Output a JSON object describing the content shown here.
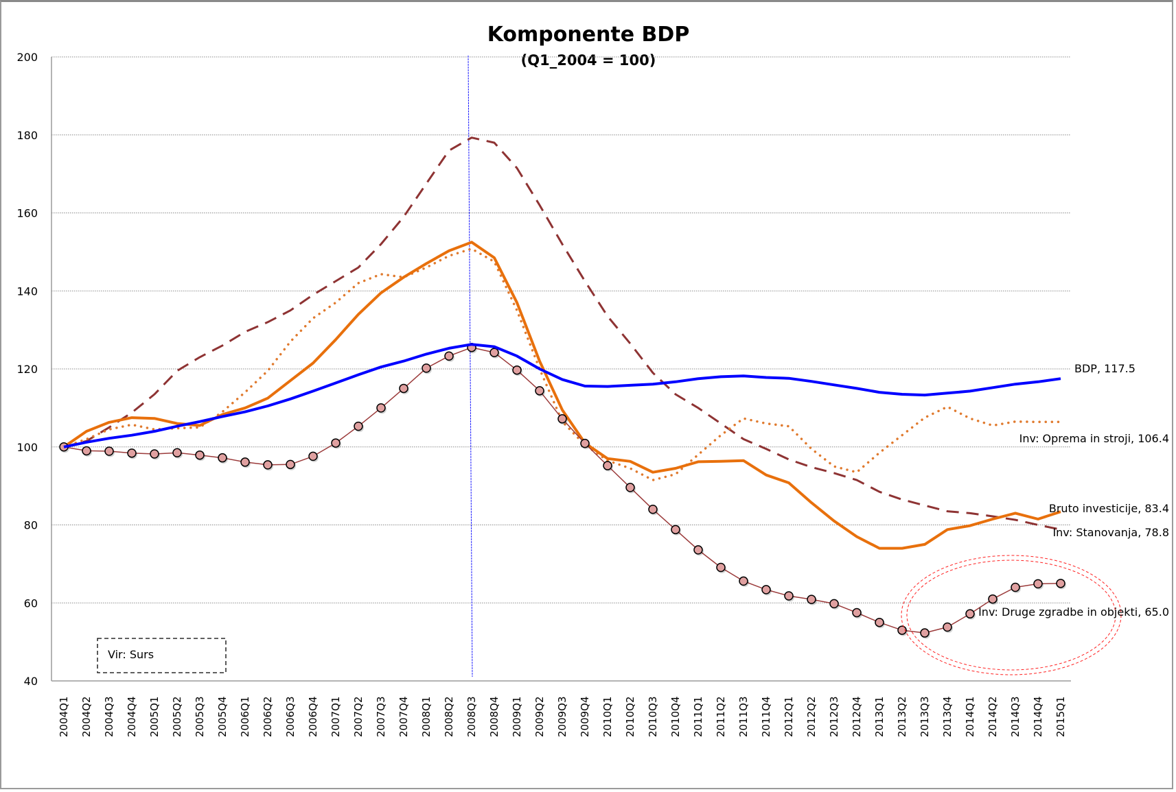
{
  "chart_data": {
    "type": "line",
    "title": "Komponente BDP",
    "subtitle": "(Q1_2004 = 100)",
    "xlabel": "",
    "ylabel": "",
    "ylim": [
      40,
      200
    ],
    "yticks": [
      40,
      60,
      80,
      100,
      120,
      140,
      160,
      180,
      200
    ],
    "grid": true,
    "source_note": "Vir: Surs",
    "vertical_marker": "2008Q3",
    "highlight_ellipse_around": [
      "2013Q1",
      "2015Q1"
    ],
    "categories": [
      "2004Q1",
      "2004Q2",
      "2004Q3",
      "2004Q4",
      "2005Q1",
      "2005Q2",
      "2005Q3",
      "2005Q4",
      "2006Q1",
      "2006Q2",
      "2006Q3",
      "2006Q4",
      "2007Q1",
      "2007Q2",
      "2007Q3",
      "2007Q4",
      "2008Q1",
      "2008Q2",
      "2008Q3",
      "2008Q4",
      "2009Q1",
      "2009Q2",
      "2009Q3",
      "2009Q4",
      "2010Q1",
      "2010Q2",
      "2010Q3",
      "2010Q4",
      "2011Q1",
      "2011Q2",
      "2011Q3",
      "2011Q4",
      "2012Q1",
      "2012Q2",
      "2012Q3",
      "2012Q4",
      "2013Q1",
      "2013Q2",
      "2013Q3",
      "2013Q4",
      "2014Q1",
      "2014Q2",
      "2014Q3",
      "2014Q4",
      "2015Q1"
    ],
    "series": [
      {
        "name": "BDP",
        "end_label": "BDP, 117.5",
        "color": "#0000ff",
        "style": "solid",
        "values": [
          100,
          101.2,
          102.2,
          103,
          104,
          105.3,
          106.5,
          107.8,
          109,
          110.5,
          112.3,
          114.3,
          116.4,
          118.5,
          120.5,
          122,
          123.8,
          125.3,
          126.3,
          125.7,
          123.3,
          120,
          117.3,
          115.6,
          115.5,
          115.8,
          116.1,
          116.7,
          117.5,
          118,
          118.2,
          117.8,
          117.6,
          116.8,
          115.9,
          115,
          114,
          113.5,
          113.3,
          113.8,
          114.3,
          115.2,
          116.1,
          116.7,
          117.5
        ]
      },
      {
        "name": "Inv: Oprema in stroji",
        "end_label": "Inv: Oprema in stroji, 106.4",
        "color": "#e07a2e",
        "style": "dotted",
        "values": [
          100,
          102,
          104.5,
          105.7,
          104.5,
          104.8,
          105,
          109,
          114,
          119.5,
          127,
          133,
          137,
          142,
          144.3,
          143.5,
          146,
          149,
          150.8,
          147.5,
          135,
          120,
          106.5,
          100.5,
          96.5,
          94.5,
          91.5,
          93,
          98,
          103,
          107.3,
          106,
          105.3,
          99.5,
          95,
          93.5,
          98.5,
          103,
          107.5,
          110.3,
          107.3,
          105.5,
          106.5,
          106.4,
          106.4
        ]
      },
      {
        "name": "Bruto investicije",
        "end_label": "Bruto investicije, 83.4",
        "color": "#e8700c",
        "style": "solid-thick",
        "values": [
          100,
          104,
          106.3,
          107.5,
          107.3,
          106,
          105.5,
          108.3,
          110,
          112.5,
          117,
          121.5,
          127.5,
          134,
          139.5,
          143.5,
          147,
          150.3,
          152.5,
          148.5,
          137,
          122,
          109.5,
          101,
          97,
          96.3,
          93.5,
          94.5,
          96.2,
          96.3,
          96.5,
          92.8,
          90.8,
          85.7,
          81,
          77,
          74,
          74,
          75,
          78.8,
          79.8,
          81.5,
          83,
          81.5,
          83.4
        ]
      },
      {
        "name": "Inv: Stanovanja",
        "end_label": "Inv: Stanovanja, 78.8",
        "color": "#8e3333",
        "style": "dashed",
        "values": [
          100,
          101.5,
          105,
          108.8,
          113.5,
          119.5,
          123,
          126,
          129.5,
          132,
          135,
          139,
          142.5,
          146,
          152,
          159,
          167.5,
          176,
          179.3,
          178,
          171.5,
          162,
          152,
          142.5,
          133.5,
          126.5,
          119,
          113.5,
          110,
          106,
          102,
          99.5,
          96.8,
          94.8,
          93.3,
          91.5,
          88.5,
          86.5,
          85,
          83.5,
          83,
          82.2,
          81.3,
          80,
          78.8
        ]
      },
      {
        "name": "Inv: Druge zgradbe in objekti",
        "end_label": "Inv: Druge zgradbe in objekti, 65.0",
        "color": "#9b3a3a",
        "marker_fill": "#e0a0a0",
        "style": "line-markers",
        "values": [
          100,
          99,
          98.9,
          98.4,
          98.2,
          98.5,
          97.9,
          97.2,
          96.1,
          95.4,
          95.5,
          97.6,
          101,
          105.3,
          110,
          115,
          120.2,
          123.3,
          125.5,
          124.2,
          119.7,
          114.4,
          107.2,
          100.9,
          95.2,
          89.6,
          84,
          78.8,
          73.6,
          69.1,
          65.6,
          63.4,
          61.8,
          60.9,
          59.8,
          57.5,
          55,
          53,
          52.3,
          53.8,
          57.2,
          61,
          64,
          64.9,
          65.0
        ]
      }
    ]
  }
}
